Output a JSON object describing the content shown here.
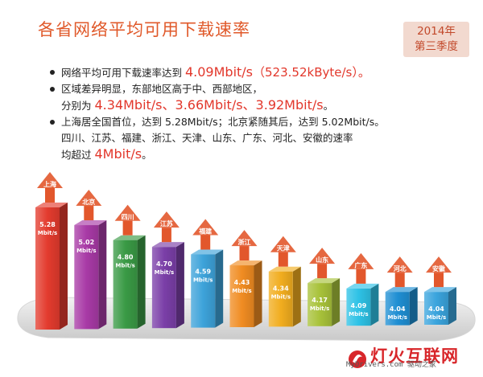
{
  "header": {
    "title": "各省网络平均可用下载速率",
    "badge_year": "2014年",
    "badge_quarter": "第三季度"
  },
  "bullets": [
    {
      "text": "网络平均可用下载速率达到 ",
      "highlight": "4.09Mbit/s",
      "paren": "（523.52kByte/s）。"
    },
    {
      "line1": "区域差异明显，东部地区高于中、西部地区，",
      "line2_prefix": "分别为 ",
      "highlight": "4.34Mbit/s、3.66Mbit/s、3.92Mbit/s",
      "line2_suffix": "。"
    },
    {
      "line1": "上海居全国首位，达到 5.28Mbit/s；北京紧随其后，达到 5.02Mbit/s。",
      "line2": "四川、江苏、福建、浙江、天津、山东、广东、河北、安徽的速率",
      "line3_prefix": "均超过 ",
      "highlight": "4Mbit/s",
      "line3_suffix": "。"
    }
  ],
  "chart_data": {
    "type": "bar",
    "title": "各省网络平均可用下载速率",
    "categories": [
      "上海",
      "北京",
      "四川",
      "江苏",
      "福建",
      "浙江",
      "天津",
      "山东",
      "广东",
      "河北",
      "安徽"
    ],
    "values": [
      5.28,
      5.02,
      4.8,
      4.7,
      4.59,
      4.43,
      4.34,
      4.17,
      4.09,
      4.04,
      4.04
    ],
    "value_labels": [
      "5.28",
      "5.02",
      "4.80",
      "4.70",
      "4.59",
      "4.43",
      "4.34",
      "4.17",
      "4.09",
      "4.04",
      "4.04"
    ],
    "unit": "Mbit/s",
    "colors": [
      "#e33b2e",
      "#a83aa6",
      "#3a9a45",
      "#7b3fa8",
      "#3da3da",
      "#f08c22",
      "#f1ad1f",
      "#a8c23a",
      "#2ec2e6",
      "#1f8fd3",
      "#3aa4dd"
    ],
    "arrow_color": "#e2572c",
    "ylim": [
      0,
      5.28
    ]
  },
  "footer": {
    "watermark": "MyDrivers.com 驱动之家",
    "logo_text": "灯火互联网"
  }
}
